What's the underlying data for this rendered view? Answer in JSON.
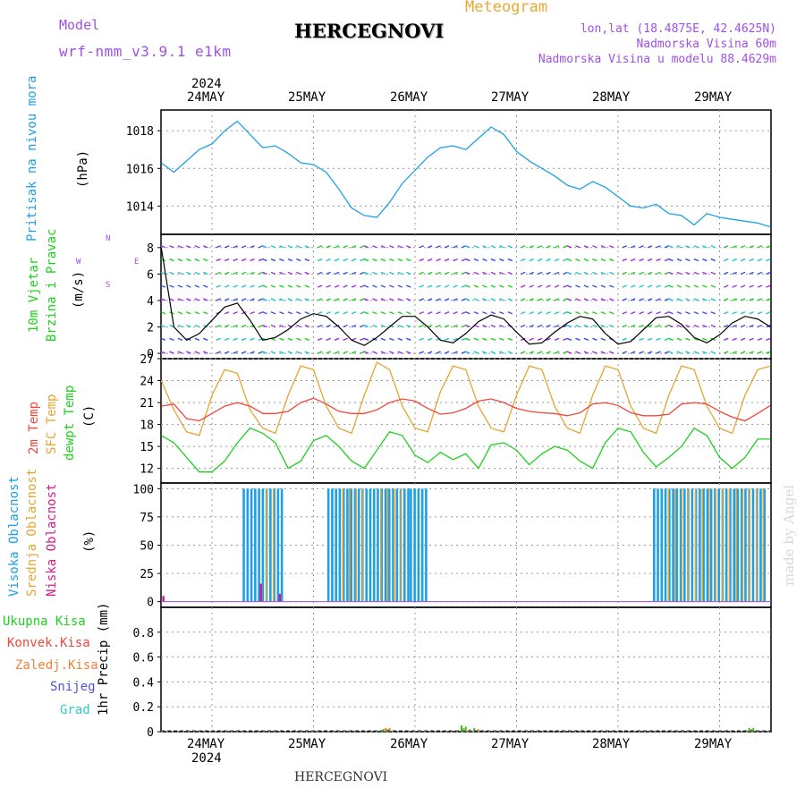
{
  "header": {
    "model_label": "Model",
    "model_name": "wrf-nmm_v3.9.1 e1km",
    "station": "HERCEGNOVI",
    "title": "Meteogram",
    "lonlat": "lon,lat (18.4875E, 42.4625N)",
    "elevation": "Nadmorska Visina 60m",
    "model_elevation": "Nadmorska Visina u modelu 88.4629m",
    "footer_station": "HERCEGNOVI",
    "watermark": "made by Angel"
  },
  "time_axis": {
    "year": "2024",
    "day_labels": [
      "24MAY",
      "25MAY",
      "26MAY",
      "27MAY",
      "28MAY",
      "29MAY"
    ],
    "start_hour_offset": 0,
    "total_hours": 144
  },
  "panels": {
    "pressure": {
      "label_main": "Pritisak na nivou mora",
      "unit": "(hPa)",
      "yticks": [
        "1014",
        "1016",
        "1018"
      ],
      "ylim": [
        1012.5,
        1019.1
      ]
    },
    "wind": {
      "label_main": "10m Vjetar",
      "label_sub": "Brzina i Pravac",
      "unit": "(m/s)",
      "yticks": [
        "0",
        "2",
        "4",
        "6",
        "8"
      ],
      "ylim": [
        -0.4,
        9
      ],
      "compass_w": "W",
      "compass_e": "E",
      "compass_n": "N",
      "compass_s": "S"
    },
    "temp": {
      "label_temp": "2m Temp",
      "label_sfc": "SFC Temp",
      "label_dew": "dewpt Temp",
      "unit": "(C)",
      "yticks": [
        "12",
        "15",
        "18",
        "21",
        "24",
        "27"
      ],
      "ylim": [
        10,
        27
      ]
    },
    "cloud": {
      "label_high": "Visoka Oblacnost",
      "label_mid": "Srednja Oblacnost",
      "label_low": "Niska Oblacnost",
      "unit": "(%)",
      "yticks": [
        "0",
        "25",
        "50",
        "75",
        "100"
      ],
      "ylim": [
        -5,
        105
      ]
    },
    "precip": {
      "label_total": "Ukupna Kisa",
      "label_conv": "Konvek.Kisa",
      "label_frz": "Zaledj.Kisa",
      "label_snow": "Snijeg",
      "label_hail": "Grad",
      "unit": "1hr Precip (mm)",
      "yticks": [
        "0",
        "0.2",
        "0.4",
        "0.6",
        "0.8"
      ],
      "ylim": [
        0,
        1
      ]
    }
  },
  "colors": {
    "pressure": "#1ea0e6",
    "temp2m": "#f0463c",
    "sfc": "#e6a532",
    "dewpt": "#1ed21e",
    "high_cloud": "#1ea0e6",
    "mid_cloud": "#e6a532",
    "low_cloud": "#d21e8c",
    "label_purple": "#a050e6",
    "label_orange": "#e6aa32",
    "wind_speed": "#000000",
    "wind_gust": "#e61e1e",
    "precip_total": "#1ed21e",
    "precip_conv": "#f0463c",
    "precip_frz": "#f0823c",
    "precip_snow": "#5050e6",
    "precip_hail": "#32c8c8"
  },
  "chart_data": [
    {
      "type": "line",
      "name": "pressure",
      "x": [
        0,
        3,
        6,
        9,
        12,
        15,
        18,
        21,
        24,
        27,
        30,
        33,
        36,
        39,
        42,
        45,
        48,
        51,
        54,
        57,
        60,
        63,
        66,
        69,
        72,
        75,
        78,
        81,
        84,
        87,
        90,
        93,
        96,
        99,
        102,
        105,
        108,
        111,
        114,
        117,
        120,
        123,
        126,
        129,
        132,
        135,
        138,
        141,
        144
      ],
      "values": [
        1016.3,
        1015.8,
        1016.4,
        1017.0,
        1017.3,
        1018.0,
        1018.5,
        1017.8,
        1017.1,
        1017.2,
        1016.8,
        1016.3,
        1016.2,
        1015.8,
        1014.9,
        1013.9,
        1013.5,
        1013.4,
        1014.2,
        1015.2,
        1015.9,
        1016.6,
        1017.1,
        1017.2,
        1017.0,
        1017.6,
        1018.2,
        1017.8,
        1016.9,
        1016.4,
        1016.0,
        1015.6,
        1015.1,
        1014.9,
        1015.3,
        1015.0,
        1014.5,
        1014.0,
        1013.9,
        1014.1,
        1013.6,
        1013.5,
        1013.0,
        1013.6,
        1013.4,
        1013.3,
        1013.2,
        1013.1,
        1012.9
      ]
    },
    {
      "type": "line",
      "name": "wind_speed",
      "x": [
        0,
        3,
        6,
        9,
        12,
        15,
        18,
        21,
        24,
        27,
        30,
        33,
        36,
        39,
        42,
        45,
        48,
        51,
        54,
        57,
        60,
        63,
        66,
        69,
        72,
        75,
        78,
        81,
        84,
        87,
        90,
        93,
        96,
        99,
        102,
        105,
        108,
        111,
        114,
        117,
        120,
        123,
        126,
        129,
        132,
        135,
        138,
        141,
        144
      ],
      "values": [
        8.0,
        2.0,
        1.0,
        1.5,
        2.5,
        3.5,
        3.8,
        2.5,
        1.0,
        1.2,
        1.8,
        2.6,
        3.0,
        2.8,
        2.0,
        1.0,
        0.6,
        1.2,
        2.0,
        2.8,
        2.8,
        2.0,
        1.0,
        0.8,
        1.5,
        2.4,
        2.9,
        2.6,
        1.6,
        0.7,
        0.8,
        1.6,
        2.3,
        2.8,
        2.6,
        1.5,
        0.7,
        0.9,
        1.8,
        2.7,
        2.8,
        2.2,
        1.2,
        0.8,
        1.4,
        2.3,
        2.8,
        2.6,
        2.0
      ]
    },
    {
      "type": "line",
      "name": "temp2m",
      "x": [
        0,
        3,
        6,
        9,
        12,
        15,
        18,
        21,
        24,
        27,
        30,
        33,
        36,
        39,
        42,
        45,
        48,
        51,
        54,
        57,
        60,
        63,
        66,
        69,
        72,
        75,
        78,
        81,
        84,
        87,
        90,
        93,
        96,
        99,
        102,
        105,
        108,
        111,
        114,
        117,
        120,
        123,
        126,
        129,
        132,
        135,
        138,
        141,
        144
      ],
      "values": [
        20.5,
        20.8,
        18.8,
        18.5,
        19.5,
        20.5,
        21.0,
        20.5,
        19.5,
        19.5,
        19.8,
        21.0,
        21.6,
        20.8,
        19.8,
        19.5,
        19.5,
        20.0,
        21.0,
        21.5,
        21.2,
        20.2,
        19.4,
        19.6,
        20.2,
        21.2,
        21.5,
        21.0,
        20.2,
        19.8,
        19.6,
        19.5,
        19.2,
        19.6,
        20.8,
        21.0,
        20.6,
        19.6,
        19.2,
        19.2,
        19.4,
        20.8,
        21.0,
        20.8,
        19.8,
        19.0,
        18.5,
        19.5,
        20.6
      ]
    },
    {
      "type": "line",
      "name": "sfc_temp",
      "x": [
        0,
        3,
        6,
        9,
        12,
        15,
        18,
        21,
        24,
        27,
        30,
        33,
        36,
        39,
        42,
        45,
        48,
        51,
        54,
        57,
        60,
        63,
        66,
        69,
        72,
        75,
        78,
        81,
        84,
        87,
        90,
        93,
        96,
        99,
        102,
        105,
        108,
        111,
        114,
        117,
        120,
        123,
        126,
        129,
        132,
        135,
        138,
        141,
        144
      ],
      "values": [
        24.0,
        20.0,
        17.0,
        16.5,
        22.0,
        25.5,
        25.0,
        20.0,
        17.5,
        16.8,
        22.0,
        26.0,
        25.5,
        20.5,
        17.5,
        16.8,
        22.0,
        26.5,
        25.5,
        20.5,
        17.5,
        17.0,
        22.5,
        26.0,
        25.5,
        20.5,
        17.5,
        17.0,
        22.0,
        26.0,
        25.5,
        20.5,
        17.5,
        16.8,
        22.0,
        26.0,
        25.5,
        20.5,
        17.5,
        16.8,
        22.0,
        26.0,
        25.5,
        20.5,
        17.5,
        16.8,
        22.0,
        25.5,
        26.0
      ]
    },
    {
      "type": "line",
      "name": "dewpt",
      "x": [
        0,
        3,
        6,
        9,
        12,
        15,
        18,
        21,
        24,
        27,
        30,
        33,
        36,
        39,
        42,
        45,
        48,
        51,
        54,
        57,
        60,
        63,
        66,
        69,
        72,
        75,
        78,
        81,
        84,
        87,
        90,
        93,
        96,
        99,
        102,
        105,
        108,
        111,
        114,
        117,
        120,
        123,
        126,
        129,
        132,
        135,
        138,
        141,
        144
      ],
      "values": [
        16.5,
        15.5,
        13.5,
        11.5,
        11.5,
        13.0,
        15.5,
        17.5,
        16.8,
        15.5,
        12.0,
        13.0,
        15.8,
        16.5,
        15.0,
        13.0,
        12.0,
        14.5,
        17.0,
        16.5,
        13.8,
        12.8,
        14.2,
        13.2,
        14.0,
        12.0,
        15.2,
        15.5,
        14.5,
        12.5,
        14.0,
        15.0,
        14.5,
        13.0,
        12.0,
        15.5,
        17.5,
        17.0,
        14.2,
        12.2,
        13.5,
        15.0,
        17.5,
        16.5,
        13.5,
        12.0,
        13.5,
        16.0,
        16.0
      ]
    },
    {
      "type": "bar",
      "name": "cloud_cover",
      "series": [
        {
          "name": "high",
          "segments": [
            [
              19.5,
              28.5,
              100
            ],
            [
              39.5,
              58.5,
              100
            ],
            [
              59,
              63,
              100
            ],
            [
              116.5,
              143.5,
              100
            ]
          ]
        },
        {
          "name": "mid",
          "segments": [
            [
              25,
              28,
              100
            ],
            [
              43,
              49,
              100
            ],
            [
              52,
              57,
              100
            ],
            [
              120,
              143,
              100
            ]
          ]
        },
        {
          "name": "low",
          "segments": [
            [
              0.5,
              0.5,
              5
            ],
            [
              23.5,
              23.5,
              16
            ],
            [
              28,
              28,
              7
            ]
          ]
        }
      ]
    },
    {
      "type": "bar",
      "name": "precip_1hr",
      "x": [
        52.5,
        53,
        53.5,
        54,
        71,
        71.5,
        72,
        73,
        74,
        75,
        139,
        139.5,
        140
      ],
      "values": [
        0.02,
        0.03,
        0.02,
        0.03,
        0.05,
        0.03,
        0.04,
        0.02,
        0.03,
        0.02,
        0.03,
        0.02,
        0.03
      ]
    }
  ]
}
